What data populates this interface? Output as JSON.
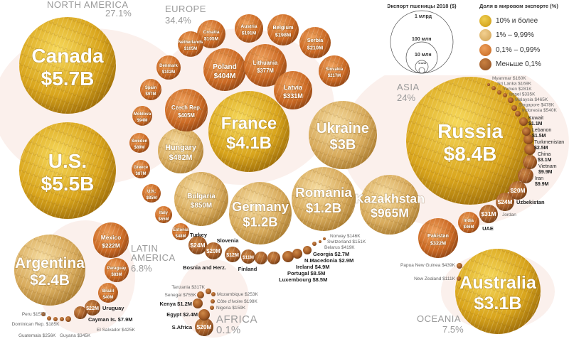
{
  "legend": {
    "size_title": "Экспорт пшеницы 2018 ($)",
    "size_labels": [
      "1 млрд",
      "100 млн",
      "10 млн",
      "1 млн"
    ],
    "share_title": "Доля в мировом экспорте (%)",
    "tiers": [
      {
        "label": "10% и более",
        "color": "#d4a51c"
      },
      {
        "label": "1% – 9,99%",
        "color": "#ddb15c"
      },
      {
        "label": "0,1% – 0,99%",
        "color": "#d27a32"
      },
      {
        "label": "Меньше 0,1%",
        "color": "#a8612c"
      }
    ]
  },
  "regions": [
    {
      "name": "NORTH AMERICA",
      "share": "27.1%"
    },
    {
      "name": "EUROPE",
      "share": "34.4%"
    },
    {
      "name": "ASIA",
      "share": "24%"
    },
    {
      "name": "LATIN AMERICA",
      "share": "6.8%"
    },
    {
      "name": "AFRICA",
      "share": "0.1%"
    },
    {
      "name": "OCEANIA",
      "share": "7.5%"
    }
  ],
  "chart_data": {
    "type": "bubble",
    "title": "Экспорт пшеницы 2018 ($)",
    "size_metric": "export value (USD)",
    "color_metric": "share of world export (%)",
    "countries": [
      {
        "name": "Canada",
        "value": "$5.7B",
        "tier": 0,
        "region": "NORTH AMERICA"
      },
      {
        "name": "U.S.",
        "value": "$5.5B",
        "tier": 0,
        "region": "NORTH AMERICA"
      },
      {
        "name": "Argentina",
        "value": "$2.4B",
        "tier": 1,
        "region": "LATIN AMERICA"
      },
      {
        "name": "Mexico",
        "value": "$222M",
        "tier": 2,
        "region": "LATIN AMERICA"
      },
      {
        "name": "Paraguay",
        "value": "$83M",
        "tier": 2,
        "region": "LATIN AMERICA"
      },
      {
        "name": "Brazil",
        "value": "$40M",
        "tier": 2,
        "region": "LATIN AMERICA"
      },
      {
        "name": "Uruguay",
        "value": "$22M",
        "tier": 3,
        "region": "LATIN AMERICA"
      },
      {
        "name": "Cayman Is.",
        "value": "$7.9M",
        "tier": 3,
        "region": "LATIN AMERICA"
      },
      {
        "name": "El Salvador",
        "value": "$425K",
        "tier": 3,
        "region": "LATIN AMERICA"
      },
      {
        "name": "Guyana",
        "value": "$345K",
        "tier": 3,
        "region": "LATIN AMERICA"
      },
      {
        "name": "Guatemala",
        "value": "$256K",
        "tier": 3,
        "region": "LATIN AMERICA"
      },
      {
        "name": "Dominican Rep.",
        "value": "$185K",
        "tier": 3,
        "region": "LATIN AMERICA"
      },
      {
        "name": "Peru",
        "value": "$157K",
        "tier": 3,
        "region": "LATIN AMERICA"
      },
      {
        "name": "France",
        "value": "$4.1B",
        "tier": 0,
        "region": "EUROPE"
      },
      {
        "name": "Ukraine",
        "value": "$3B",
        "tier": 1,
        "region": "EUROPE"
      },
      {
        "name": "Germany",
        "value": "$1.2B",
        "tier": 1,
        "region": "EUROPE"
      },
      {
        "name": "Romania",
        "value": "$1.2B",
        "tier": 1,
        "region": "EUROPE"
      },
      {
        "name": "Bulgaria",
        "value": "$850M",
        "tier": 1,
        "region": "EUROPE"
      },
      {
        "name": "Hungary",
        "value": "$482M",
        "tier": 1,
        "region": "EUROPE"
      },
      {
        "name": "Czech Rep.",
        "value": "$405M",
        "tier": 2,
        "region": "EUROPE"
      },
      {
        "name": "Poland",
        "value": "$404M",
        "tier": 2,
        "region": "EUROPE"
      },
      {
        "name": "Lithuania",
        "value": "$377M",
        "tier": 2,
        "region": "EUROPE"
      },
      {
        "name": "Latvia",
        "value": "$331M",
        "tier": 2,
        "region": "EUROPE"
      },
      {
        "name": "Slovakia",
        "value": "$217M",
        "tier": 2,
        "region": "EUROPE"
      },
      {
        "name": "Serbia",
        "value": "$210M",
        "tier": 2,
        "region": "EUROPE"
      },
      {
        "name": "Belgium",
        "value": "$198M",
        "tier": 2,
        "region": "EUROPE"
      },
      {
        "name": "Austria",
        "value": "$191M",
        "tier": 2,
        "region": "EUROPE"
      },
      {
        "name": "Croatia",
        "value": "$105M",
        "tier": 2,
        "region": "EUROPE"
      },
      {
        "name": "Netherlands",
        "value": "$105M",
        "tier": 2,
        "region": "EUROPE"
      },
      {
        "name": "Denmark",
        "value": "$102M",
        "tier": 2,
        "region": "EUROPE"
      },
      {
        "name": "Spain",
        "value": "$97M",
        "tier": 2,
        "region": "EUROPE"
      },
      {
        "name": "Moldova",
        "value": "$94M",
        "tier": 2,
        "region": "EUROPE"
      },
      {
        "name": "Sweden",
        "value": "$89M",
        "tier": 2,
        "region": "EUROPE"
      },
      {
        "name": "Greece",
        "value": "$87M",
        "tier": 2,
        "region": "EUROPE"
      },
      {
        "name": "U.K.",
        "value": "$85M",
        "tier": 2,
        "region": "EUROPE"
      },
      {
        "name": "Italy",
        "value": "$65M",
        "tier": 2,
        "region": "EUROPE"
      },
      {
        "name": "Estonia",
        "value": "$48M",
        "tier": 2,
        "region": "EUROPE"
      },
      {
        "name": "Turkey",
        "value": "$24M",
        "tier": 3,
        "region": "EUROPE"
      },
      {
        "name": "Slovenia",
        "value": "$20M",
        "tier": 3,
        "region": "EUROPE"
      },
      {
        "name": "Bosnia and Herz.",
        "value": "$12M",
        "tier": 3,
        "region": "EUROPE"
      },
      {
        "name": "Finland",
        "value": "$11M",
        "tier": 3,
        "region": "EUROPE"
      },
      {
        "name": "Luxembourg",
        "value": "$8.5M",
        "tier": 3,
        "region": "EUROPE"
      },
      {
        "name": "Portugal",
        "value": "$8.5M",
        "tier": 3,
        "region": "EUROPE"
      },
      {
        "name": "Ireland",
        "value": "$4.9M",
        "tier": 3,
        "region": "EUROPE"
      },
      {
        "name": "N.Macedonia",
        "value": "$2.9M",
        "tier": 3,
        "region": "EUROPE"
      },
      {
        "name": "Georgia",
        "value": "$2.7M",
        "tier": 3,
        "region": "EUROPE"
      },
      {
        "name": "Belarus",
        "value": "$419K",
        "tier": 3,
        "region": "EUROPE"
      },
      {
        "name": "Switzerland",
        "value": "$151K",
        "tier": 3,
        "region": "EUROPE"
      },
      {
        "name": "Norway",
        "value": "$146K",
        "tier": 3,
        "region": "EUROPE"
      },
      {
        "name": "Russia",
        "value": "$8.4B",
        "tier": 0,
        "region": "ASIA"
      },
      {
        "name": "Kazakhstan",
        "value": "$965M",
        "tier": 1,
        "region": "ASIA"
      },
      {
        "name": "Pakistan",
        "value": "$322M",
        "tier": 2,
        "region": "ASIA"
      },
      {
        "name": "India",
        "value": "$46M",
        "tier": 2,
        "region": "ASIA"
      },
      {
        "name": "UAE",
        "value": "$31M",
        "tier": 3,
        "region": "ASIA"
      },
      {
        "name": "Jordan",
        "value": "",
        "tier": 3,
        "region": "ASIA"
      },
      {
        "name": "Uzbekistan",
        "value": "$24M",
        "tier": 3,
        "region": "ASIA"
      },
      {
        "name": "",
        "value": "$20M",
        "tier": 3,
        "region": "ASIA"
      },
      {
        "name": "Iran",
        "value": "$9.9M",
        "tier": 3,
        "region": "ASIA"
      },
      {
        "name": "Vietnam",
        "value": "$9.9M",
        "tier": 3,
        "region": "ASIA"
      },
      {
        "name": "China",
        "value": "$3.1M",
        "tier": 3,
        "region": "ASIA"
      },
      {
        "name": "Turkmenistan",
        "value": "$2.5M",
        "tier": 3,
        "region": "ASIA"
      },
      {
        "name": "Lebanon",
        "value": "$1.5M",
        "tier": 3,
        "region": "ASIA"
      },
      {
        "name": "Kuwait",
        "value": "$1.1M",
        "tier": 3,
        "region": "ASIA"
      },
      {
        "name": "Indonesia",
        "value": "$540K",
        "tier": 3,
        "region": "ASIA"
      },
      {
        "name": "Singapore",
        "value": "$478K",
        "tier": 3,
        "region": "ASIA"
      },
      {
        "name": "Malaysia",
        "value": "$465K",
        "tier": 3,
        "region": "ASIA"
      },
      {
        "name": "Israel",
        "value": "$335K",
        "tier": 3,
        "region": "ASIA"
      },
      {
        "name": "Yemen",
        "value": "$281K",
        "tier": 3,
        "region": "ASIA"
      },
      {
        "name": "Sri Lanka",
        "value": "$169K",
        "tier": 3,
        "region": "ASIA"
      },
      {
        "name": "Myanmar",
        "value": "$160K",
        "tier": 3,
        "region": "ASIA"
      },
      {
        "name": "Australia",
        "value": "$3.1B",
        "tier": 0,
        "region": "OCEANIA"
      },
      {
        "name": "Papua New Guinea",
        "value": "$439K",
        "tier": 3,
        "region": "OCEANIA"
      },
      {
        "name": "New Zealand",
        "value": "$111K",
        "tier": 3,
        "region": "OCEANIA"
      },
      {
        "name": "S.Africa",
        "value": "$20M",
        "tier": 3,
        "region": "AFRICA"
      },
      {
        "name": "Egypt",
        "value": "$2.4M",
        "tier": 3,
        "region": "AFRICA"
      },
      {
        "name": "Kenya",
        "value": "$1.2M",
        "tier": 3,
        "region": "AFRICA"
      },
      {
        "name": "Senegal",
        "value": "$755K",
        "tier": 3,
        "region": "AFRICA"
      },
      {
        "name": "Tanzania",
        "value": "$317K",
        "tier": 3,
        "region": "AFRICA"
      },
      {
        "name": "Mozambique",
        "value": "$253K",
        "tier": 3,
        "region": "AFRICA"
      },
      {
        "name": "Côte d'Ivoire",
        "value": "$198K",
        "tier": 3,
        "region": "AFRICA"
      },
      {
        "name": "Nigeria",
        "value": "$159K",
        "tier": 3,
        "region": "AFRICA"
      }
    ]
  }
}
